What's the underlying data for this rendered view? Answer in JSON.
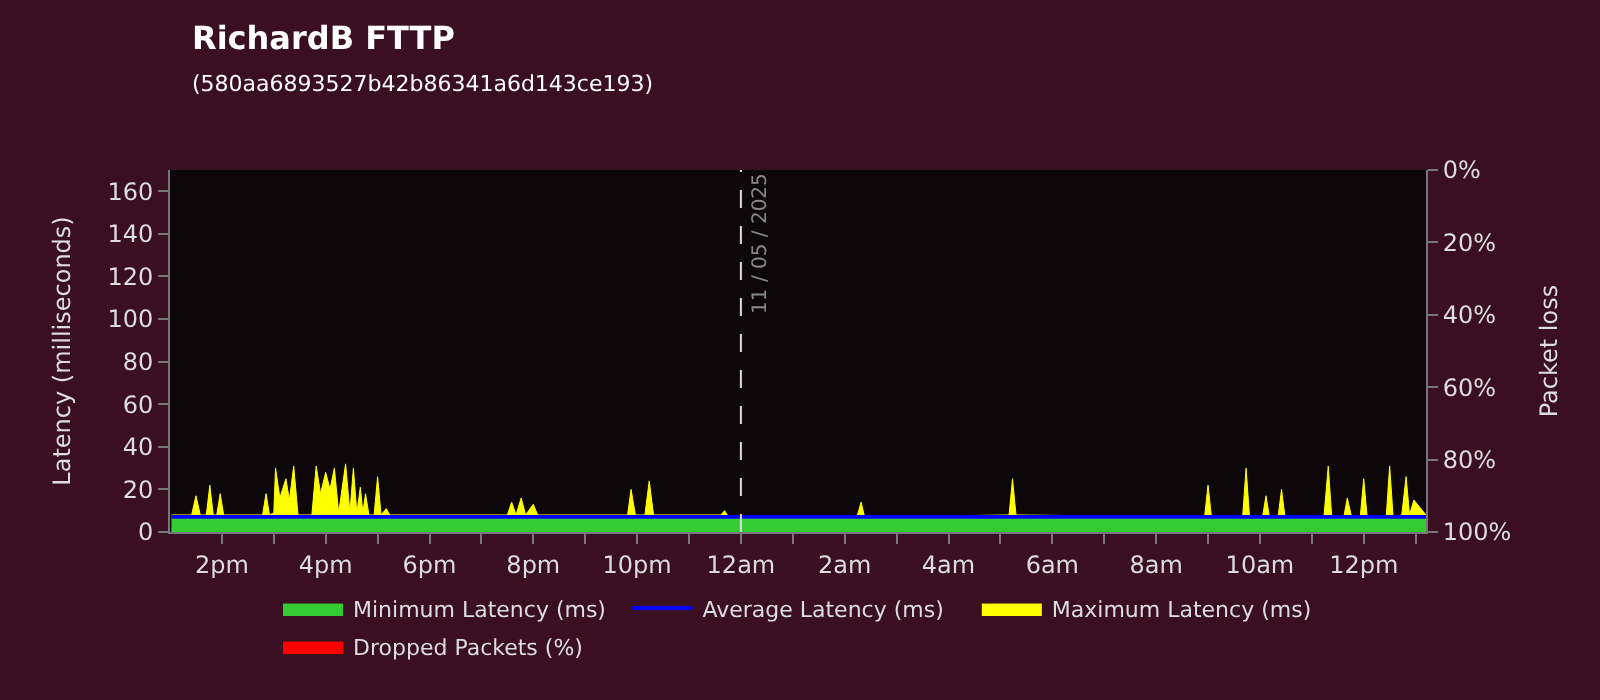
{
  "chart_data": {
    "type": "area",
    "title": "RichardB FTTP",
    "subtitle": "(580aa6893527b42b86341a6d143ce193)",
    "ylabel": "Latency (milliseconds)",
    "y2label": "Packet loss",
    "xlim": [
      "2025-05-10T13:00",
      "2025-05-11T13:12"
    ],
    "xticks": [
      {
        "value": "2025-05-10T14:00",
        "label": "2pm"
      },
      {
        "value": "2025-05-10T15:00",
        "label": null
      },
      {
        "value": "2025-05-10T16:00",
        "label": "4pm"
      },
      {
        "value": "2025-05-10T17:00",
        "label": null
      },
      {
        "value": "2025-05-10T18:00",
        "label": "6pm"
      },
      {
        "value": "2025-05-10T19:00",
        "label": null
      },
      {
        "value": "2025-05-10T20:00",
        "label": "8pm"
      },
      {
        "value": "2025-05-10T21:00",
        "label": null
      },
      {
        "value": "2025-05-10T22:00",
        "label": "10pm"
      },
      {
        "value": "2025-05-10T23:00",
        "label": null
      },
      {
        "value": "2025-05-11T00:00",
        "label": "12am"
      },
      {
        "value": "2025-05-11T01:00",
        "label": null
      },
      {
        "value": "2025-05-11T02:00",
        "label": "2am"
      },
      {
        "value": "2025-05-11T03:00",
        "label": null
      },
      {
        "value": "2025-05-11T04:00",
        "label": "4am"
      },
      {
        "value": "2025-05-11T05:00",
        "label": null
      },
      {
        "value": "2025-05-11T06:00",
        "label": "6am"
      },
      {
        "value": "2025-05-11T07:00",
        "label": null
      },
      {
        "value": "2025-05-11T08:00",
        "label": "8am"
      },
      {
        "value": "2025-05-11T09:00",
        "label": null
      },
      {
        "value": "2025-05-11T10:00",
        "label": "10am"
      },
      {
        "value": "2025-05-11T11:00",
        "label": null
      },
      {
        "value": "2025-05-11T12:00",
        "label": "12pm"
      },
      {
        "value": "2025-05-11T13:00",
        "label": null
      }
    ],
    "ylim": [
      0,
      170
    ],
    "yticks": [
      0,
      20,
      40,
      60,
      80,
      100,
      120,
      140,
      160
    ],
    "y2lim": [
      100,
      0
    ],
    "y2ticks": [
      {
        "value": 0,
        "label": "0%"
      },
      {
        "value": 20,
        "label": "20%"
      },
      {
        "value": 40,
        "label": "40%"
      },
      {
        "value": 60,
        "label": "60%"
      },
      {
        "value": 80,
        "label": "80%"
      },
      {
        "value": 100,
        "label": "100%"
      }
    ],
    "grid": false,
    "legend": "bottom",
    "ref_lines": [
      {
        "axis": "x",
        "value": "2025-05-11T00:00",
        "label": "11 / 05 / 2025",
        "color": "#dddddd",
        "line_style": "dashed"
      }
    ],
    "series": [
      {
        "name": "Minimum Latency (ms)",
        "color": "#33cc33",
        "x": [
          "2025-05-10T13:02",
          "2025-05-10T16:00",
          "2025-05-10T20:00",
          "2025-05-11T00:00",
          "2025-05-11T04:00",
          "2025-05-11T08:00",
          "2025-05-11T13:12"
        ],
        "values": [
          6,
          6,
          6,
          6,
          6,
          6,
          6
        ]
      },
      {
        "name": "Average Latency (ms)",
        "color": "#0000ff",
        "type": "line",
        "x": [
          "2025-05-10T13:02",
          "2025-05-10T15:00",
          "2025-05-10T16:00",
          "2025-05-10T17:00",
          "2025-05-10T20:00",
          "2025-05-10T22:00",
          "2025-05-11T00:00",
          "2025-05-11T04:00",
          "2025-05-11T08:00",
          "2025-05-11T12:00",
          "2025-05-11T13:12"
        ],
        "values": [
          7,
          7,
          7,
          7,
          7,
          7,
          7,
          7,
          7,
          7,
          7
        ]
      },
      {
        "name": "Maximum Latency (ms)",
        "color": "#ffff00",
        "x": [
          "2025-05-10T13:02",
          "2025-05-10T13:25",
          "2025-05-10T13:30",
          "2025-05-10T13:35",
          "2025-05-10T13:42",
          "2025-05-10T13:46",
          "2025-05-10T13:50",
          "2025-05-10T13:54",
          "2025-05-10T13:58",
          "2025-05-10T14:02",
          "2025-05-10T14:47",
          "2025-05-10T14:51",
          "2025-05-10T14:55",
          "2025-05-10T15:00",
          "2025-05-10T15:02",
          "2025-05-10T15:07",
          "2025-05-10T15:14",
          "2025-05-10T15:18",
          "2025-05-10T15:23",
          "2025-05-10T15:28",
          "2025-05-10T15:44",
          "2025-05-10T15:49",
          "2025-05-10T15:54",
          "2025-05-10T16:00",
          "2025-05-10T16:05",
          "2025-05-10T16:10",
          "2025-05-10T16:15",
          "2025-05-10T16:23",
          "2025-05-10T16:28",
          "2025-05-10T16:32",
          "2025-05-10T16:36",
          "2025-05-10T16:40",
          "2025-05-10T16:43",
          "2025-05-10T16:46",
          "2025-05-10T16:50",
          "2025-05-10T16:56",
          "2025-05-10T17:00",
          "2025-05-10T17:04",
          "2025-05-10T17:10",
          "2025-05-10T17:14",
          "2025-05-10T19:30",
          "2025-05-10T19:35",
          "2025-05-10T19:40",
          "2025-05-10T19:46",
          "2025-05-10T19:51",
          "2025-05-10T20:00",
          "2025-05-10T20:05",
          "2025-05-10T21:49",
          "2025-05-10T21:53",
          "2025-05-10T21:58",
          "2025-05-10T22:09",
          "2025-05-10T22:14",
          "2025-05-10T22:19",
          "2025-05-10T23:37",
          "2025-05-10T23:41",
          "2025-05-10T23:46",
          "2025-05-11T02:14",
          "2025-05-11T02:19",
          "2025-05-11T02:23",
          "2025-05-11T05:10",
          "2025-05-11T05:14",
          "2025-05-11T05:18",
          "2025-05-11T08:56",
          "2025-05-11T09:00",
          "2025-05-11T09:04",
          "2025-05-11T09:40",
          "2025-05-11T09:44",
          "2025-05-11T09:48",
          "2025-05-11T10:03",
          "2025-05-11T10:07",
          "2025-05-11T10:11",
          "2025-05-11T10:21",
          "2025-05-11T10:25",
          "2025-05-11T10:29",
          "2025-05-11T11:14",
          "2025-05-11T11:19",
          "2025-05-11T11:23",
          "2025-05-11T11:37",
          "2025-05-11T11:41",
          "2025-05-11T11:46",
          "2025-05-11T11:56",
          "2025-05-11T12:00",
          "2025-05-11T12:04",
          "2025-05-11T12:26",
          "2025-05-11T12:30",
          "2025-05-11T12:34",
          "2025-05-11T12:44",
          "2025-05-11T12:49",
          "2025-05-11T12:53",
          "2025-05-11T12:58",
          "2025-05-11T13:12"
        ],
        "values": [
          8,
          8,
          17,
          8,
          8,
          22,
          8,
          8,
          18,
          8,
          8,
          18,
          8,
          9,
          30,
          16,
          25,
          15,
          31,
          8,
          8,
          31,
          18,
          28,
          20,
          30,
          9,
          32,
          9,
          30,
          9,
          21,
          9,
          18,
          8,
          8,
          26,
          8,
          11,
          8,
          8,
          14,
          8,
          16,
          8,
          13,
          8,
          8,
          20,
          8,
          8,
          24,
          8,
          8,
          10,
          7,
          7,
          14,
          7,
          8,
          25,
          8,
          7,
          22,
          7,
          7,
          30,
          7,
          7,
          17,
          7,
          7,
          20,
          7,
          7,
          31,
          7,
          7,
          16,
          7,
          7,
          25,
          7,
          7,
          31,
          7,
          8,
          26,
          8,
          15,
          8
        ]
      },
      {
        "name": "Dropped Packets (%)",
        "color": "#ff0000",
        "axis": "y2"
      }
    ]
  }
}
